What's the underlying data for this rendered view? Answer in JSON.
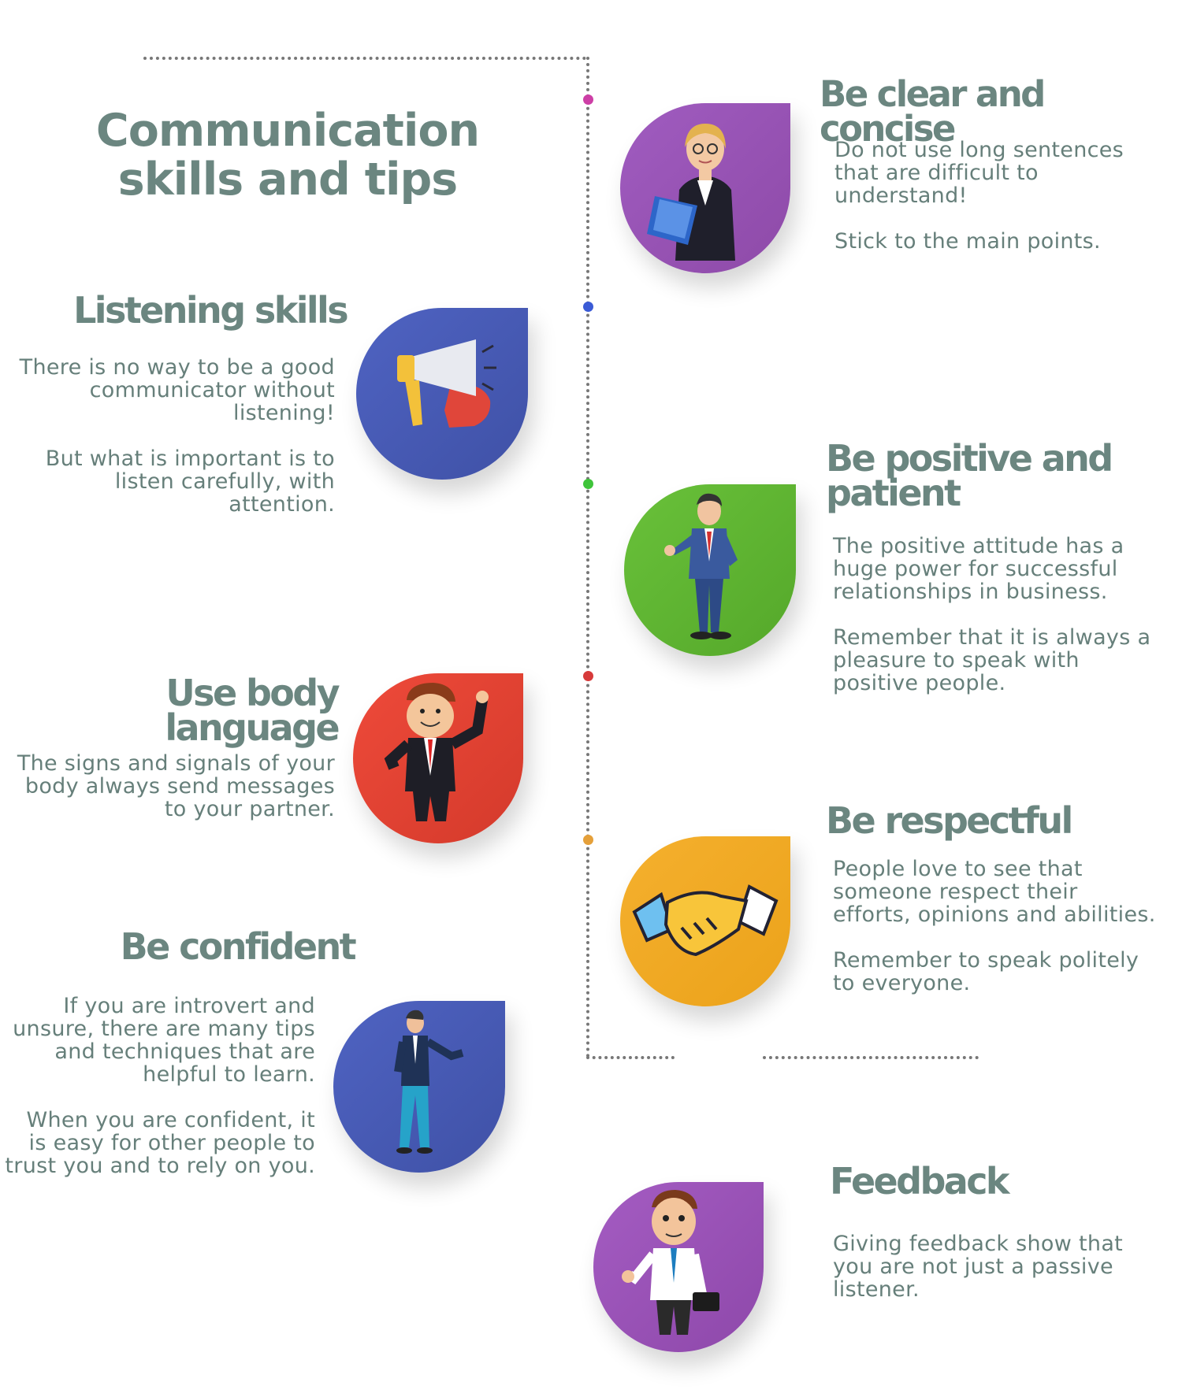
{
  "title": {
    "line1": "Communication",
    "line2": "skills and tips"
  },
  "colors": {
    "heading": "#6b8680",
    "text": "#667f7a",
    "purple": "#9c55b3",
    "blue": "#4355aa",
    "green": "#5fb533",
    "red": "#e4402e",
    "orange": "#f1a51b",
    "line": "#777777"
  },
  "sections": {
    "clear": {
      "heading": "Be clear and concise",
      "p1": "Do not use long sentences that are difficult to understand!",
      "p2": "Stick to the main points.",
      "icon": "businesswoman-icon"
    },
    "listening": {
      "heading": "Listening skills",
      "p1": "There is no way to be a good communicator without listening!",
      "p2": "But what is important is to listen carefully, with attention.",
      "icon": "megaphone-icon"
    },
    "positive": {
      "heading": "Be positive and patient",
      "p1": "The positive attitude has a huge power for successful relationships in business.",
      "p2": "Remember that it is always a pleasure to speak with positive people.",
      "icon": "thumbs-up-man-icon"
    },
    "body_language": {
      "heading": "Use body language",
      "p1": "The signs and signals of your body always send messages to your partner.",
      "icon": "gesturing-man-icon"
    },
    "respectful": {
      "heading": "Be respectful",
      "p1": "People love to see that someone respect their efforts, opinions and abilities.",
      "p2": "Remember to speak politely to everyone.",
      "icon": "handshake-icon"
    },
    "confident": {
      "heading": "Be confident",
      "p1": "If you are introvert and unsure, there are many tips and techniques that are helpful to learn.",
      "p2": "When you are confident, it is easy for other people to trust you and to rely on you.",
      "icon": "confident-man-icon"
    },
    "feedback": {
      "heading": "Feedback",
      "p1": "Giving feedback show that you are not just a passive listener.",
      "icon": "man-with-briefcase-icon"
    }
  }
}
